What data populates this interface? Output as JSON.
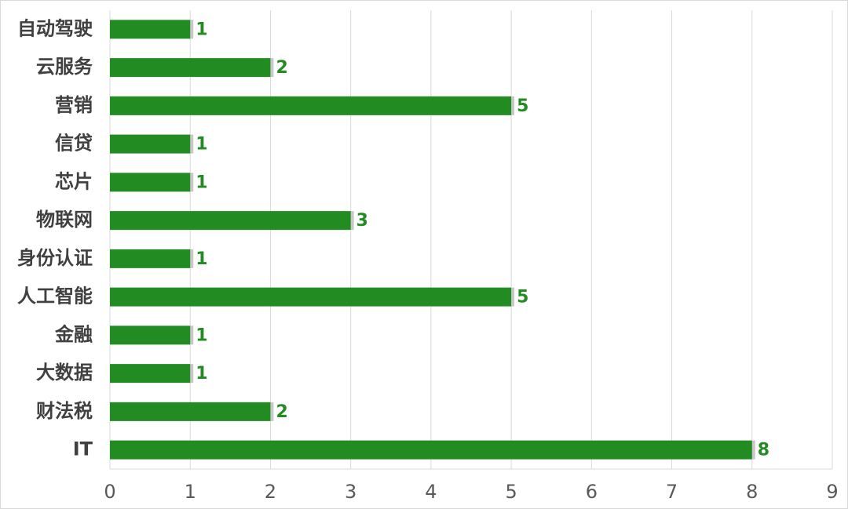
{
  "chart_data": {
    "type": "bar",
    "orientation": "horizontal",
    "categories": [
      "自动驾驶",
      "云服务",
      "营销",
      "信贷",
      "芯片",
      "物联网",
      "身份认证",
      "人工智能",
      "金融",
      "大数据",
      "财法税",
      "IT"
    ],
    "values": [
      1,
      2,
      5,
      1,
      1,
      3,
      1,
      5,
      1,
      1,
      2,
      8
    ],
    "color": "#228b22",
    "xlim": [
      0,
      9
    ],
    "xticks": [
      0,
      1,
      2,
      3,
      4,
      5,
      6,
      7,
      8,
      9
    ],
    "grid": true
  }
}
